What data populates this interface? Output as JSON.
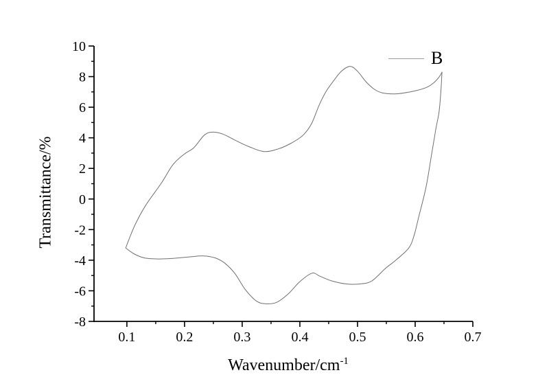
{
  "figure": {
    "background": "#ffffff",
    "y_axis_title": {
      "text": "Transmittance/%"
    },
    "x_axis_title": {
      "text": "Wavenumber/cm",
      "superscript": "-1"
    },
    "legend": {
      "label": "B",
      "line_color": "#999999",
      "position": "top-right"
    }
  },
  "chart_data": {
    "type": "line",
    "title": "",
    "xlabel": "Wavenumber/cm^-1",
    "ylabel": "Transmittance/%",
    "grid": false,
    "legend_position": "top-right",
    "axis_color": "#000000",
    "line_color": "#6f6f6f",
    "xlim": [
      0.043,
      0.7
    ],
    "ylim": [
      -8,
      10
    ],
    "x_ticks": [
      0.1,
      0.2,
      0.3,
      0.4,
      0.5,
      0.6,
      0.7
    ],
    "x_tick_labels": [
      "0.1",
      "0.2",
      "0.3",
      "0.4",
      "0.5",
      "0.6",
      "0.7"
    ],
    "x_minor_ticks": [
      0.15,
      0.25,
      0.35,
      0.45,
      0.55,
      0.65
    ],
    "y_ticks": [
      -8,
      -6,
      -4,
      -2,
      0,
      2,
      4,
      6,
      8,
      10
    ],
    "y_tick_labels": [
      "-8",
      "-6",
      "-4",
      "-2",
      "0",
      "2",
      "4",
      "6",
      "8",
      "10"
    ],
    "y_minor_ticks": [
      -7,
      -5,
      -3,
      -1,
      1,
      3,
      5,
      7,
      9
    ],
    "series": [
      {
        "name": "B",
        "closed_loop": true,
        "upper_branch": [
          [
            0.098,
            -3.2
          ],
          [
            0.103,
            -2.7
          ],
          [
            0.114,
            -1.7
          ],
          [
            0.132,
            -0.45
          ],
          [
            0.16,
            1.05
          ],
          [
            0.18,
            2.25
          ],
          [
            0.2,
            2.95
          ],
          [
            0.216,
            3.35
          ],
          [
            0.235,
            4.2
          ],
          [
            0.25,
            4.37
          ],
          [
            0.268,
            4.22
          ],
          [
            0.29,
            3.8
          ],
          [
            0.312,
            3.42
          ],
          [
            0.338,
            3.1
          ],
          [
            0.363,
            3.28
          ],
          [
            0.385,
            3.65
          ],
          [
            0.405,
            4.15
          ],
          [
            0.42,
            4.9
          ],
          [
            0.433,
            6.1
          ],
          [
            0.445,
            7.0
          ],
          [
            0.458,
            7.7
          ],
          [
            0.472,
            8.35
          ],
          [
            0.487,
            8.67
          ],
          [
            0.5,
            8.35
          ],
          [
            0.515,
            7.65
          ],
          [
            0.53,
            7.15
          ],
          [
            0.545,
            6.92
          ],
          [
            0.57,
            6.88
          ],
          [
            0.6,
            7.07
          ],
          [
            0.62,
            7.3
          ],
          [
            0.633,
            7.62
          ],
          [
            0.642,
            8.0
          ],
          [
            0.6465,
            8.3
          ]
        ],
        "lower_branch": [
          [
            0.6465,
            8.3
          ],
          [
            0.6445,
            7.0
          ],
          [
            0.6415,
            5.7
          ],
          [
            0.636,
            4.6
          ],
          [
            0.628,
            2.8
          ],
          [
            0.619,
            0.8
          ],
          [
            0.606,
            -1.2
          ],
          [
            0.598,
            -2.4
          ],
          [
            0.589,
            -3.2
          ],
          [
            0.568,
            -3.95
          ],
          [
            0.548,
            -4.55
          ],
          [
            0.525,
            -5.35
          ],
          [
            0.505,
            -5.55
          ],
          [
            0.48,
            -5.55
          ],
          [
            0.455,
            -5.35
          ],
          [
            0.435,
            -5.05
          ],
          [
            0.421,
            -4.85
          ],
          [
            0.4,
            -5.4
          ],
          [
            0.38,
            -6.2
          ],
          [
            0.36,
            -6.75
          ],
          [
            0.342,
            -6.85
          ],
          [
            0.325,
            -6.68
          ],
          [
            0.305,
            -5.9
          ],
          [
            0.288,
            -4.9
          ],
          [
            0.27,
            -4.2
          ],
          [
            0.253,
            -3.85
          ],
          [
            0.233,
            -3.72
          ],
          [
            0.21,
            -3.78
          ],
          [
            0.18,
            -3.88
          ],
          [
            0.155,
            -3.92
          ],
          [
            0.13,
            -3.85
          ],
          [
            0.112,
            -3.58
          ],
          [
            0.098,
            -3.2
          ]
        ]
      }
    ]
  }
}
